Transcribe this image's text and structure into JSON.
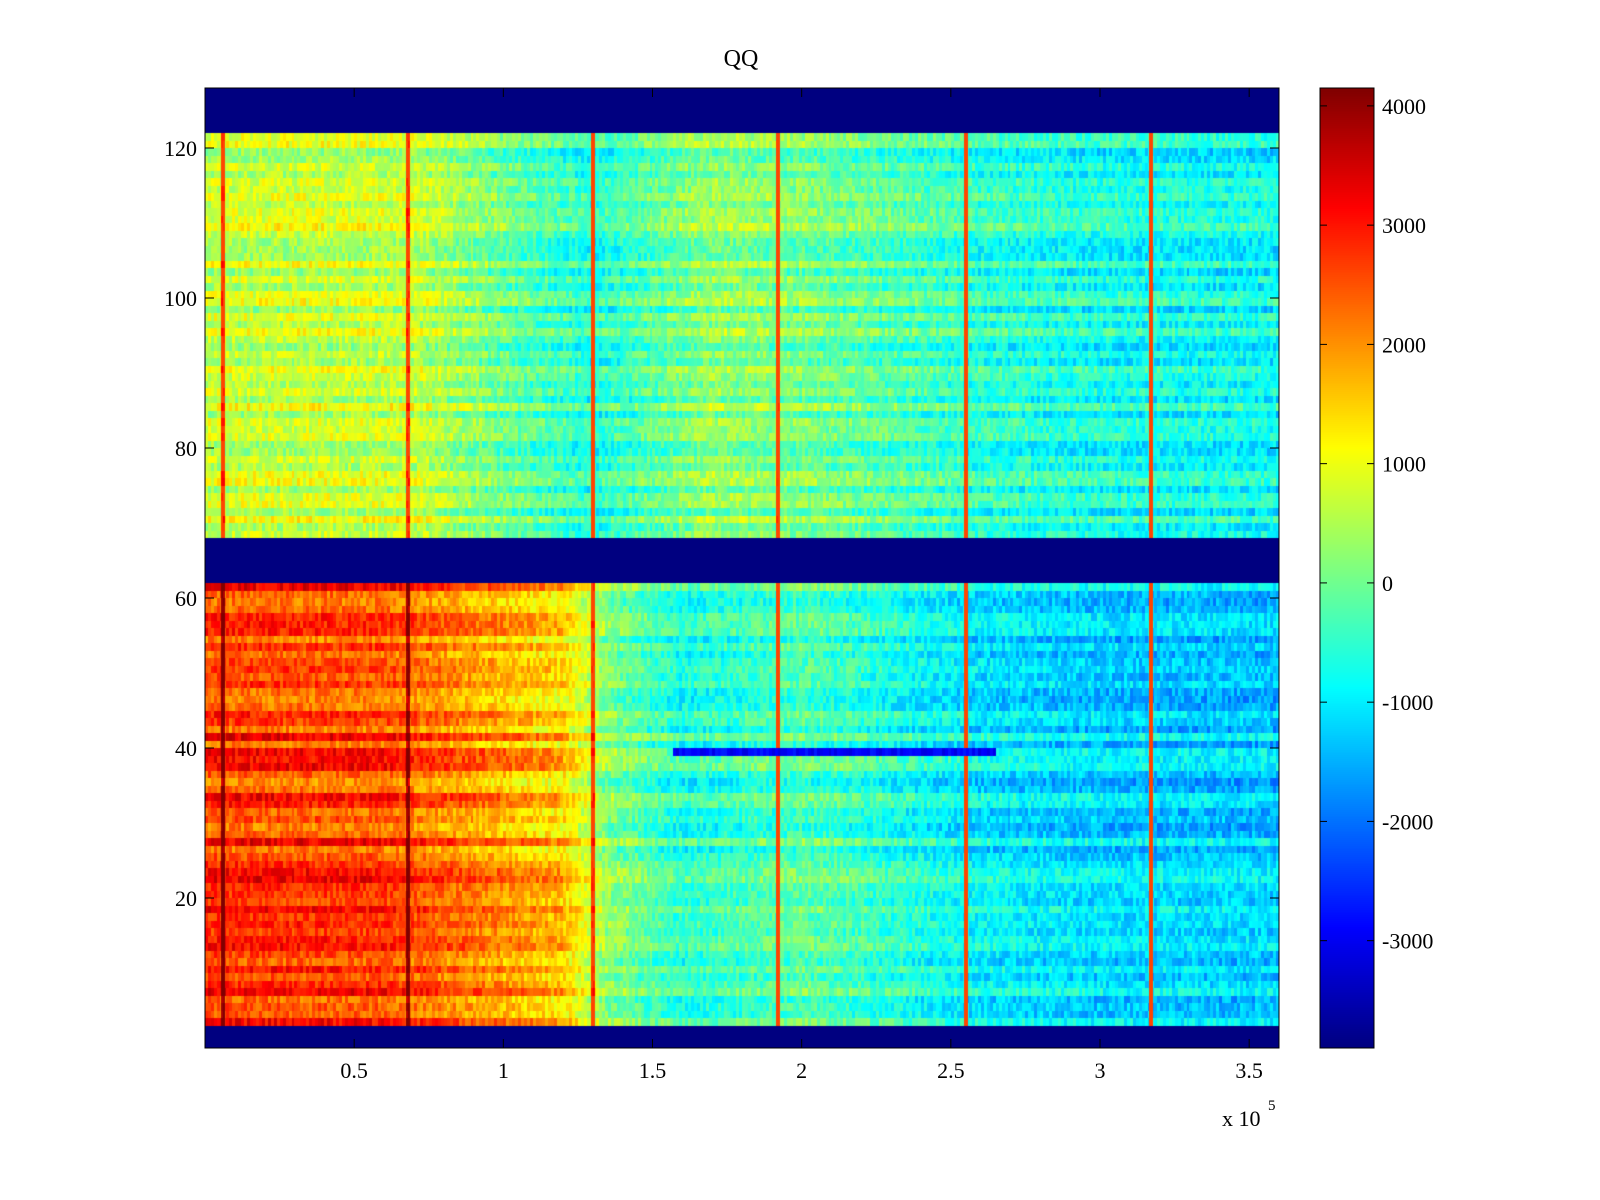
{
  "chart_data": {
    "type": "heatmap",
    "title": "QQ",
    "xlabel": "",
    "ylabel": "",
    "x_multiplier_label": {
      "base": "x 10",
      "exponent": "5"
    },
    "x_range": [
      0,
      3.6
    ],
    "y_range": [
      0,
      128
    ],
    "x_ticks": [
      {
        "value": 0.5,
        "label": "0.5"
      },
      {
        "value": 1,
        "label": "1"
      },
      {
        "value": 1.5,
        "label": "1.5"
      },
      {
        "value": 2,
        "label": "2"
      },
      {
        "value": 2.5,
        "label": "2.5"
      },
      {
        "value": 3,
        "label": "3"
      },
      {
        "value": 3.5,
        "label": "3.5"
      }
    ],
    "y_ticks": [
      {
        "value": 20,
        "label": "20"
      },
      {
        "value": 40,
        "label": "40"
      },
      {
        "value": 60,
        "label": "60"
      },
      {
        "value": 80,
        "label": "80"
      },
      {
        "value": 100,
        "label": "100"
      },
      {
        "value": 120,
        "label": "120"
      }
    ],
    "colorbar": {
      "range": [
        -3900,
        4150
      ],
      "colormap": "jet",
      "ticks": [
        {
          "value": 4000,
          "label": "4000"
        },
        {
          "value": 3000,
          "label": "3000"
        },
        {
          "value": 2000,
          "label": "2000"
        },
        {
          "value": 1000,
          "label": "1000"
        },
        {
          "value": 0,
          "label": "0"
        },
        {
          "value": -1000,
          "label": "-1000"
        },
        {
          "value": -2000,
          "label": "-2000"
        },
        {
          "value": -3000,
          "label": "-3000"
        }
      ]
    },
    "empty_row_bands": [
      [
        0,
        3
      ],
      [
        62,
        68
      ],
      [
        122,
        128
      ]
    ],
    "vertical_stripes_x": [
      0.06,
      0.68,
      1.3,
      1.92,
      2.55,
      3.17
    ],
    "value_profiles": {
      "lower_band": {
        "rows": [
          3,
          62
        ],
        "x": [
          0,
          0.6,
          1.2,
          1.35,
          1.6,
          2.0,
          2.6,
          3.0,
          3.6
        ],
        "values": [
          2700,
          2600,
          1500,
          200,
          -600,
          -200,
          -1000,
          -1200,
          -1300
        ]
      },
      "upper_band": {
        "rows": [
          68,
          122
        ],
        "x": [
          0,
          0.7,
          1.0,
          1.3,
          1.7,
          2.0,
          2.6,
          3.0,
          3.6
        ],
        "values": [
          700,
          700,
          0,
          -600,
          300,
          100,
          -500,
          -700,
          -800
        ]
      }
    },
    "row_40_anomaly": {
      "x_ranges": [
        [
          1.57,
          2.65
        ]
      ],
      "value": -2900
    },
    "legend": "none",
    "grid": false
  }
}
